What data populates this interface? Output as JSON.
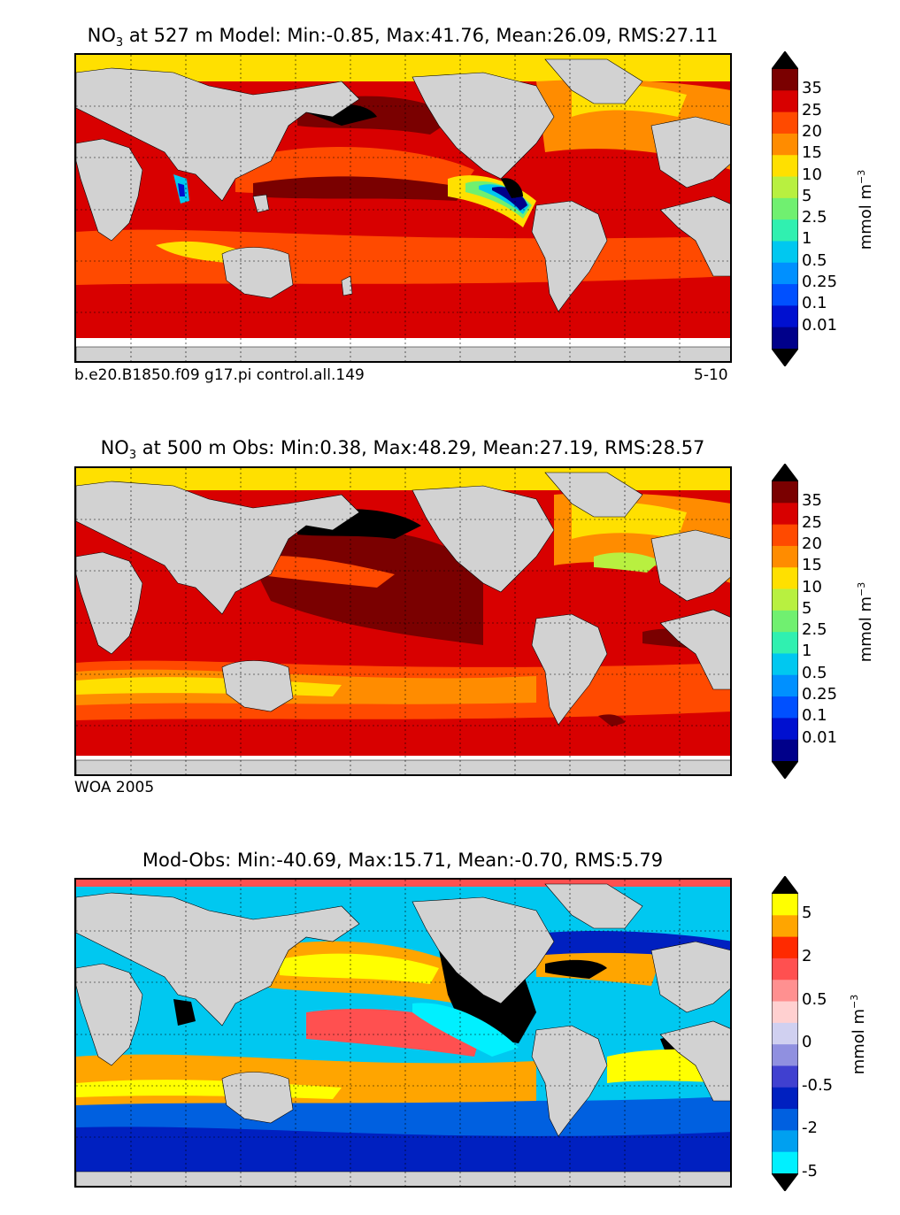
{
  "panels": [
    {
      "title_prefix": "NO",
      "title_sub": "3",
      "title_rest": "at 527 m Model: Min:-0.85, Max:41.76, Mean:26.09, RMS:27.11",
      "caption_left": "b.e20.B1850.f09 g17.pi control.all.149",
      "caption_right": "5-10",
      "colorbar_ticks": [
        "35",
        "25",
        "20",
        "15",
        "10",
        "5",
        "2.5",
        "1",
        "0.5",
        "0.25",
        "0.1",
        "0.01"
      ],
      "colorbar_colors": [
        "#7a0000",
        "#d80000",
        "#ff4a00",
        "#ff8c00",
        "#ffe000",
        "#b8f040",
        "#70f070",
        "#30f0b0",
        "#00c8f0",
        "#0090ff",
        "#0050ff",
        "#0010d0",
        "#00008a"
      ],
      "units_main": "mmol m",
      "units_sup": "−3"
    },
    {
      "title_prefix": "NO",
      "title_sub": "3",
      "title_rest": "at 500 m Obs: Min:0.38, Max:48.29, Mean:27.19, RMS:28.57",
      "caption_left": "WOA 2005",
      "caption_right": "",
      "colorbar_ticks": [
        "35",
        "25",
        "20",
        "15",
        "10",
        "5",
        "2.5",
        "1",
        "0.5",
        "0.25",
        "0.1",
        "0.01"
      ],
      "colorbar_colors": [
        "#7a0000",
        "#d80000",
        "#ff4a00",
        "#ff8c00",
        "#ffe000",
        "#b8f040",
        "#70f070",
        "#30f0b0",
        "#00c8f0",
        "#0090ff",
        "#0050ff",
        "#0010d0",
        "#00008a"
      ],
      "units_main": "mmol m",
      "units_sup": "−3"
    },
    {
      "title_prefix": "",
      "title_sub": "",
      "title_rest": "Mod-Obs: Min:-40.69, Max:15.71, Mean:-0.70, RMS:5.79",
      "caption_left": "",
      "caption_right": "",
      "colorbar_ticks": [
        "5",
        "2",
        "0.5",
        "0",
        "-0.5",
        "-2",
        "-5"
      ],
      "colorbar_colors": [
        "#ffff00",
        "#ffa500",
        "#ff2a00",
        "#ff5050",
        "#ff9090",
        "#ffd0d0",
        "#d0d0f0",
        "#9090e0",
        "#4040d0",
        "#0020c0",
        "#0060e0",
        "#00a0f0",
        "#00f0ff"
      ],
      "units_main": "mmol m",
      "units_sup": "−3"
    }
  ],
  "colors": {
    "land": "#d2d2d2",
    "missing": "#ffffff",
    "extreme": "#000000"
  }
}
